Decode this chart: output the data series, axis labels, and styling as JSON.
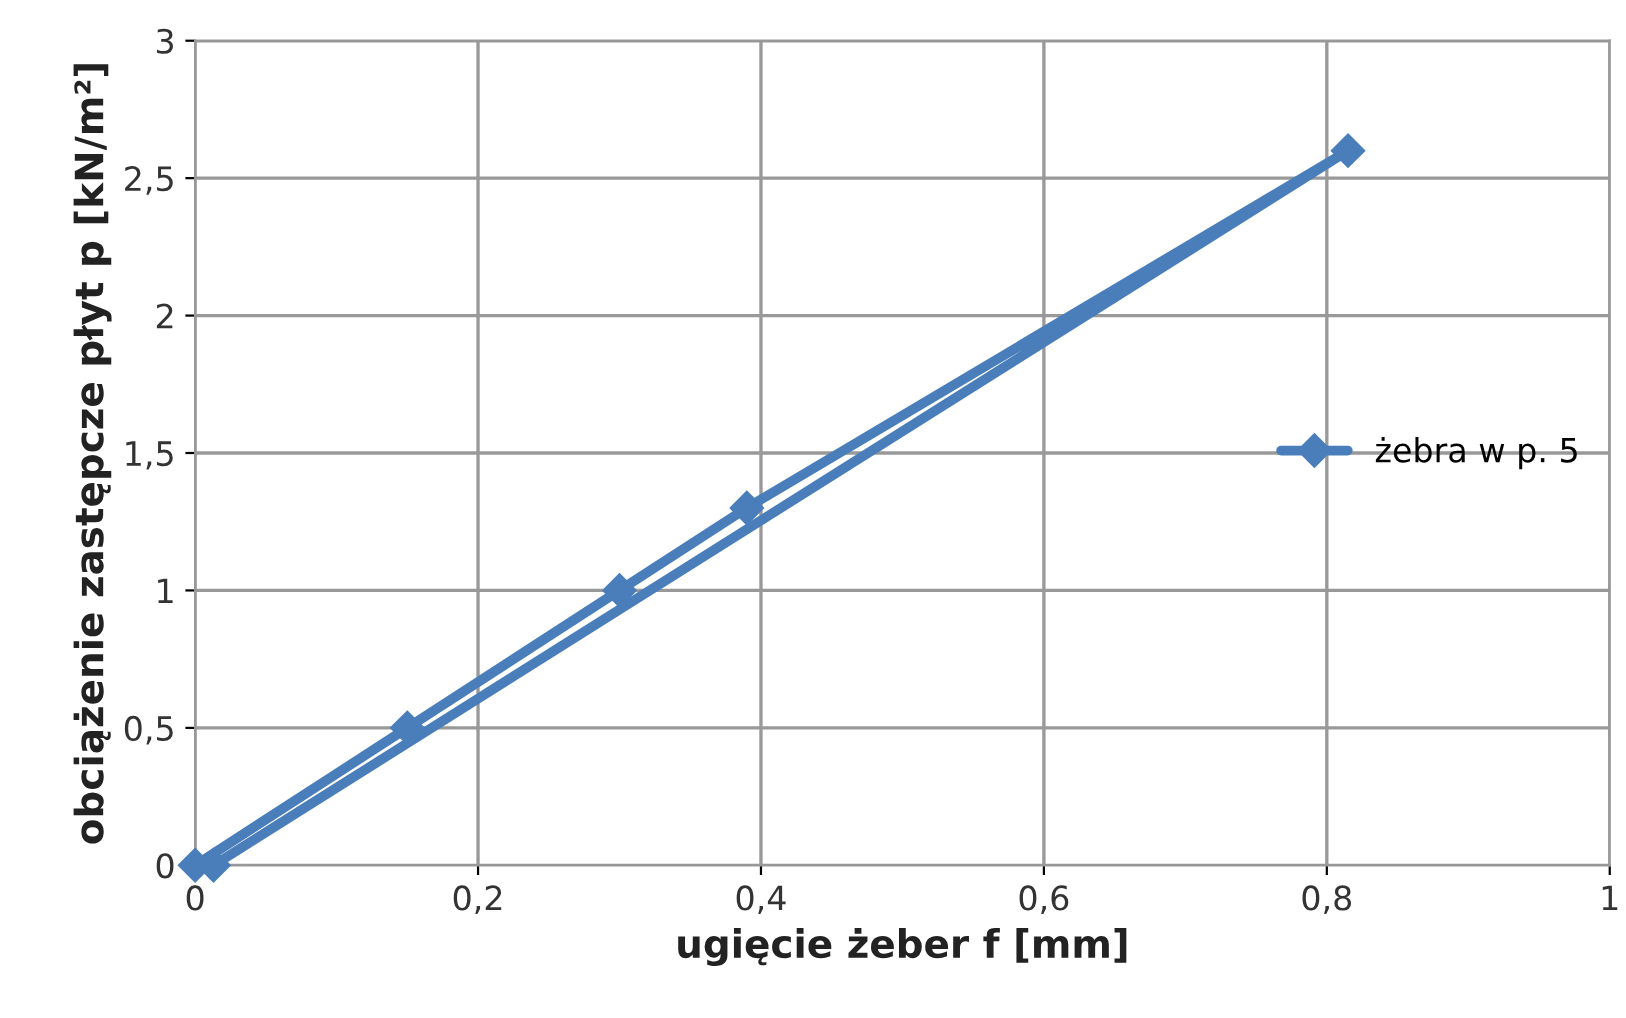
{
  "chart_data": {
    "type": "line",
    "xlabel": "ugięcie żeber f [mm]",
    "ylabel": "obciążenie zastępcze płyt p [kN/m²]",
    "series": [
      {
        "name": "żebra w p. 5",
        "color": "#4a7ebb",
        "x": [
          0,
          0.15,
          0.3,
          0.39,
          0.815,
          0.013
        ],
        "values": [
          0,
          0.5,
          1.0,
          1.3,
          2.6,
          0
        ]
      }
    ],
    "marker": "diamond",
    "line_style": "solid",
    "grid": true,
    "legend": "right",
    "xlim": [
      0,
      1
    ],
    "ylim": [
      0,
      3
    ],
    "xticks": [
      0,
      {
        "value": 0.2,
        "label": "0,2"
      },
      {
        "value": 0.4,
        "label": "0,4"
      },
      {
        "value": 0.6,
        "label": "0,6"
      },
      {
        "value": 0.8,
        "label": "0,8"
      },
      1
    ],
    "yticks": [
      0,
      {
        "value": 0.5,
        "label": "0,5"
      },
      1,
      {
        "value": 1.5,
        "label": "1,5"
      },
      2,
      {
        "value": 2.5,
        "label": "2,5"
      },
      3
    ]
  }
}
